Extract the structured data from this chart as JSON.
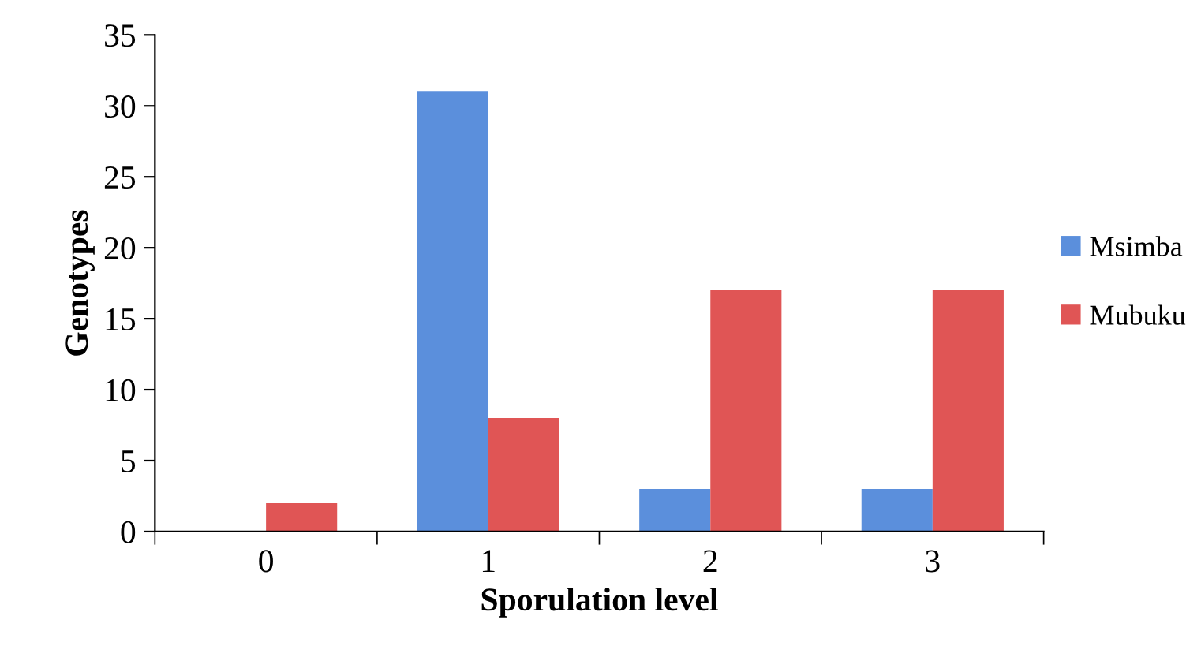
{
  "chart_data": {
    "type": "bar",
    "xlabel": "Sporulation level",
    "ylabel": "Genotypes",
    "categories": [
      "0",
      "1",
      "2",
      "3"
    ],
    "series": [
      {
        "name": "Msimba",
        "color": "#5b8fdc",
        "values": [
          0,
          31,
          3,
          3
        ]
      },
      {
        "name": "Mubuku",
        "color": "#e05555",
        "values": [
          2,
          8,
          17,
          17
        ]
      }
    ],
    "ylim": [
      0,
      35
    ],
    "yticks": [
      0,
      5,
      10,
      15,
      20,
      25,
      30,
      35
    ],
    "grid": false,
    "legend": "right"
  }
}
